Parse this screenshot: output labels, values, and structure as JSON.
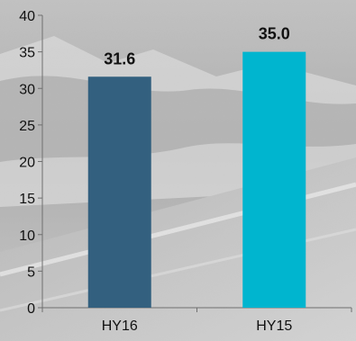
{
  "chart_data": {
    "type": "bar",
    "categories": [
      "HY16",
      "HY15"
    ],
    "values": [
      31.6,
      35.0
    ],
    "value_labels": [
      "31.6",
      "35.0"
    ],
    "colors": [
      "#33607f",
      "#00b5cf"
    ],
    "ylim": [
      0,
      40
    ],
    "yticks": [
      0,
      5,
      10,
      15,
      20,
      25,
      30,
      35,
      40
    ],
    "grid": false,
    "legend": "none",
    "background": "photo of a snowy road in grayscale"
  }
}
